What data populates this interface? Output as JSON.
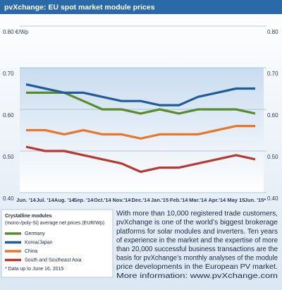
{
  "chart_data": {
    "type": "line",
    "title": "pvXchange: EU spot market module prices",
    "categories": [
      "Jun. '14",
      "Jul. '14",
      "Aug. '14",
      "Sep. '14",
      "Oct.'14",
      "Nov.'14",
      "Dec.'14",
      "Jan.'15",
      "Feb.'14",
      "Mar.'14",
      "Apr.'14",
      "May 15",
      "Jun. '15*"
    ],
    "series": [
      {
        "name": "Germany",
        "color": "#5b8c2a",
        "values": [
          0.64,
          0.64,
          0.64,
          0.62,
          0.6,
          0.6,
          0.59,
          0.6,
          0.59,
          0.6,
          0.6,
          0.6,
          0.59
        ]
      },
      {
        "name": "Korea/Japan",
        "color": "#1f5c99",
        "values": [
          0.66,
          0.65,
          0.64,
          0.64,
          0.63,
          0.62,
          0.62,
          0.61,
          0.61,
          0.63,
          0.64,
          0.65,
          0.65
        ]
      },
      {
        "name": "China",
        "color": "#e8762c",
        "values": [
          0.55,
          0.55,
          0.54,
          0.55,
          0.54,
          0.54,
          0.53,
          0.54,
          0.54,
          0.54,
          0.55,
          0.56,
          0.56
        ]
      },
      {
        "name": "South and Southeast Asia",
        "color": "#b73a30",
        "values": [
          0.51,
          0.5,
          0.5,
          0.49,
          0.48,
          0.47,
          0.45,
          0.46,
          0.46,
          0.47,
          0.48,
          0.49,
          0.48
        ]
      }
    ],
    "ylim": [
      0.4,
      0.8
    ],
    "yticks": [
      {
        "value": 0.8,
        "label": "0.80 €/Wp"
      },
      {
        "value": 0.7,
        "label": "0.70"
      },
      {
        "value": 0.6,
        "label": "0.60"
      },
      {
        "value": 0.5,
        "label": "0.50"
      },
      {
        "value": 0.4,
        "label": "0.40"
      }
    ],
    "y2lim": [
      0.4,
      0.8
    ],
    "y2ticks": [
      {
        "value": 0.8,
        "label": "0.80"
      },
      {
        "value": 0.7,
        "label": "0.70"
      },
      {
        "value": 0.6,
        "label": "0.60"
      },
      {
        "value": 0.5,
        "label": "0.50"
      },
      {
        "value": 0.4,
        "label": "0.40"
      }
    ],
    "grid": true,
    "legend_title": "Crystalline modules",
    "legend_subtitle": "(mono-/poly-Si) average net prices (EUR/Wp)",
    "footnote": "* Data up to June 16, 2015",
    "text_lines": [
      "With more than 10,000 registered trade customers,",
      "pvXchange is one of the world’s biggest brokerage",
      "platforms for solar modules and inverters. Ten years",
      "of experience in the market and the expertise of more",
      "than 20,000 successful business transactions are the",
      "basis for pvXchange’s monthly analyses of the module",
      "price developments in the European PV market.",
      "More information: www.pvXchange.com"
    ]
  }
}
